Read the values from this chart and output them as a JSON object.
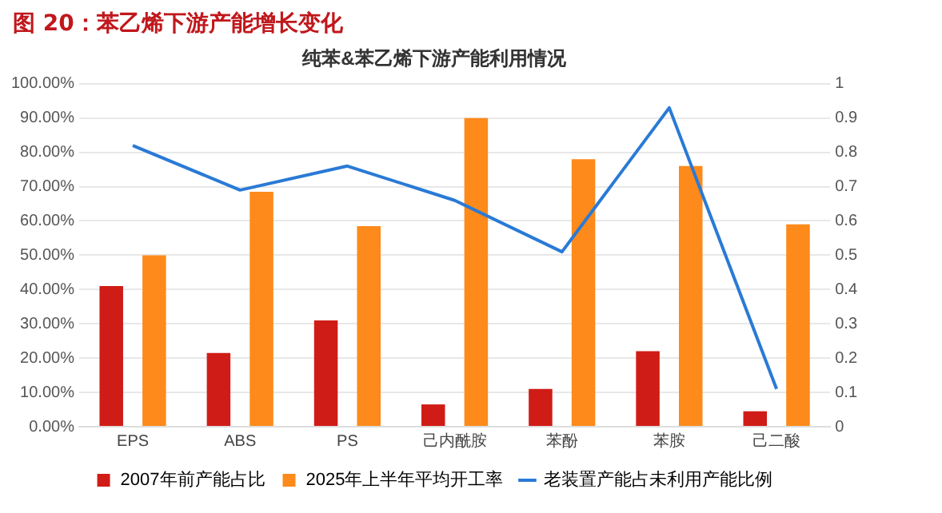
{
  "chart_data": {
    "type": "bar",
    "title": "图 20：苯乙烯下游产能增长变化",
    "subtitle": "纯苯&苯乙烯下游产能利用情况",
    "categories": [
      "EPS",
      "ABS",
      "PS",
      "己内酰胺",
      "苯酚",
      "苯胺",
      "己二酸"
    ],
    "series": [
      {
        "name": "2007年前产能占比",
        "color": "#d01c16",
        "values": [
          41,
          21.5,
          31,
          6.5,
          11,
          22,
          4.5
        ]
      },
      {
        "name": "2025年上半年平均开工率",
        "color": "#fd8a1a",
        "values": [
          50,
          68.5,
          58.5,
          90,
          78,
          76,
          59
        ]
      },
      {
        "name": "老装置产能占未利用产能比例",
        "type": "line",
        "axis": "y2",
        "color": "#2a7ad6",
        "values": [
          0.82,
          0.69,
          0.76,
          0.66,
          0.51,
          0.93,
          0.11
        ]
      }
    ],
    "ylim": [
      0,
      100
    ],
    "yticks": [
      {
        "value": 0,
        "label": "0.00%"
      },
      {
        "value": 10,
        "label": "10.00%"
      },
      {
        "value": 20,
        "label": "20.00%"
      },
      {
        "value": 30,
        "label": "30.00%"
      },
      {
        "value": 40,
        "label": "40.00%"
      },
      {
        "value": 50,
        "label": "50.00%"
      },
      {
        "value": 60,
        "label": "60.00%"
      },
      {
        "value": 70,
        "label": "70.00%"
      },
      {
        "value": 80,
        "label": "80.00%"
      },
      {
        "value": 90,
        "label": "90.00%"
      },
      {
        "value": 100,
        "label": "100.00%"
      }
    ],
    "y2lim": [
      0,
      1
    ],
    "y2ticks": [
      0,
      0.1,
      0.2,
      0.3,
      0.4,
      0.5,
      0.6,
      0.7,
      0.8,
      0.9,
      1
    ],
    "grid": "y",
    "legend": "bottom",
    "marker": "none"
  }
}
